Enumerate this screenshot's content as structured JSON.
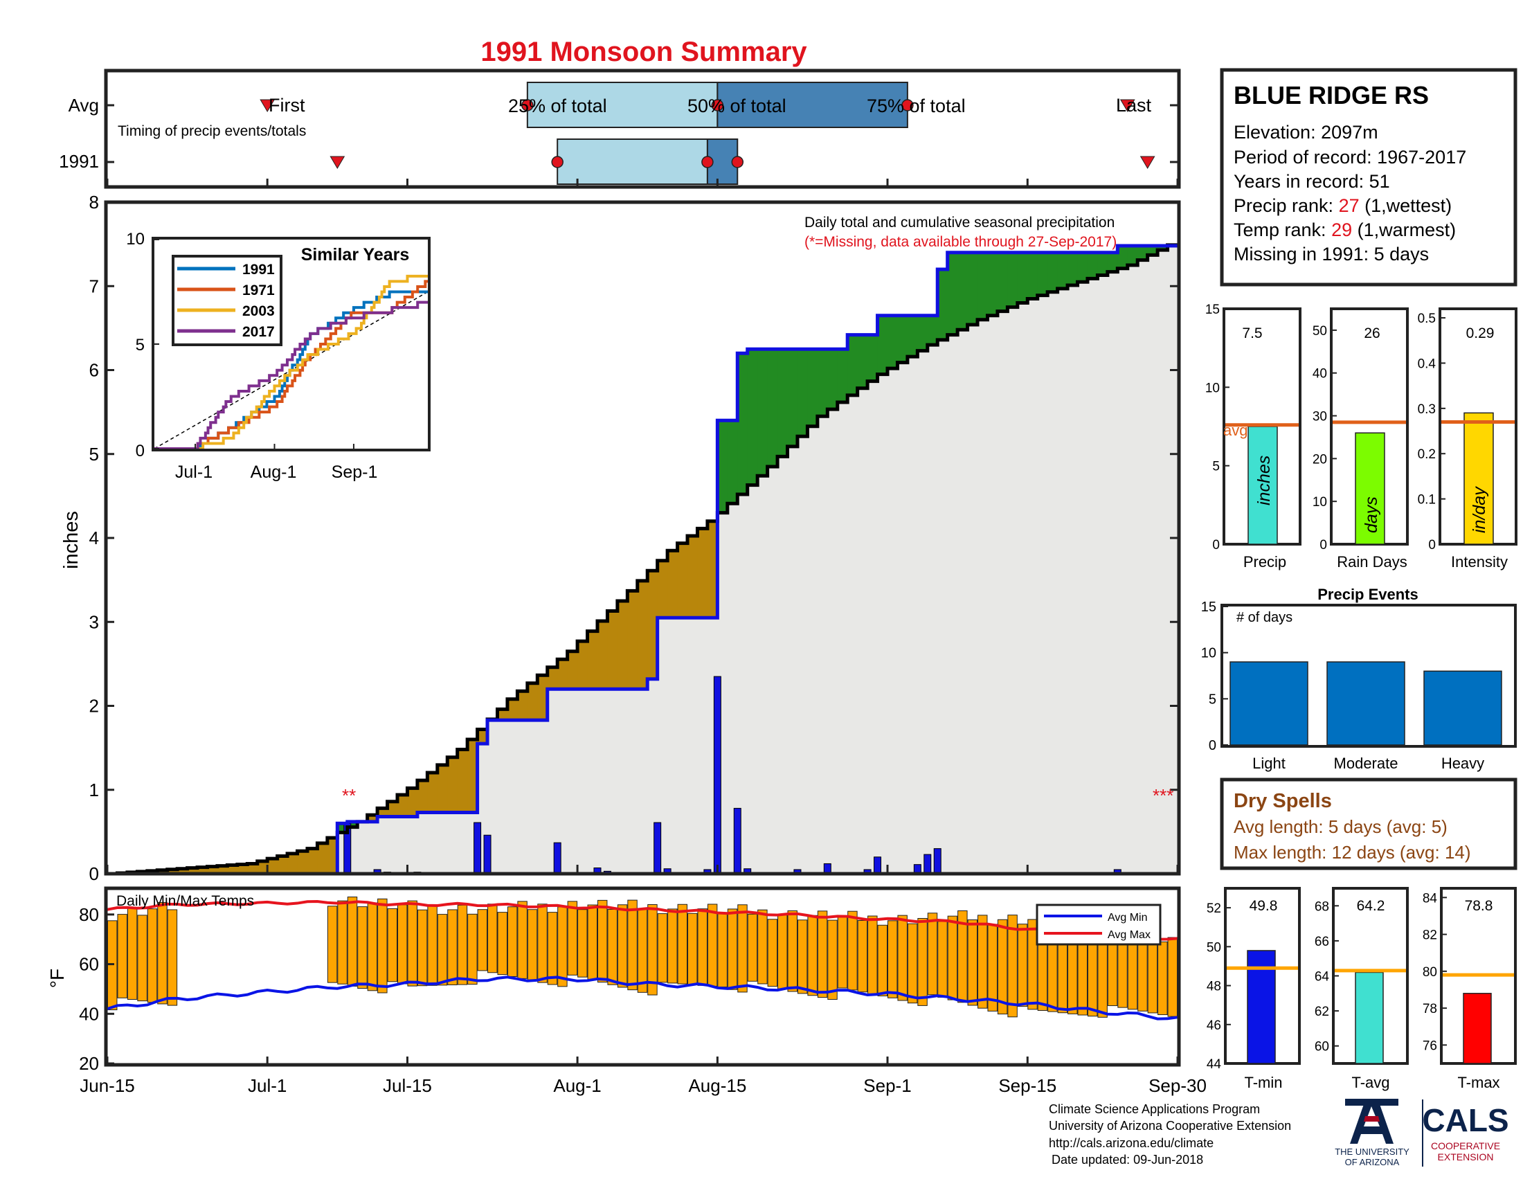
{
  "title": "1991 Monsoon Summary",
  "timing": {
    "row_labels": [
      "Avg",
      "1991"
    ],
    "note": "Timing of precip events/totals",
    "first_label": "First",
    "last_label": "Last",
    "pct25_label": "25% of total",
    "pct50_label": "50% of total",
    "pct75_label": "75% of total",
    "avg": {
      "first": "Jul-1",
      "p25": "Jul-27",
      "p50": "Aug-15",
      "p75": "Sep-3",
      "last": "Sep-25"
    },
    "y1991": {
      "first": "Jul-8",
      "p25": "Jul-30",
      "p50": "Aug-14",
      "p75": "Aug-17",
      "last": "Sep-27"
    }
  },
  "station": {
    "name": "BLUE RIDGE RS",
    "elevation_line": "Elevation: 2097m",
    "period_line": "Period of record: 1967-2017",
    "years_line": "Years in record: 51",
    "precip_rank_prefix": "Precip rank: ",
    "precip_rank_value": "27",
    "precip_rank_suffix": " (1,wettest)",
    "temp_rank_prefix": "Temp rank: ",
    "temp_rank_value": "29",
    "temp_rank_suffix": " (1,warmest)",
    "missing_line": "Missing in 1991: 5 days"
  },
  "main_chart": {
    "ylabel": "inches",
    "annotation1": "Daily total and cumulative seasonal precipitation",
    "annotation2": "(*=Missing, data available through 27-Sep-2017)",
    "missing_marker_1": "**",
    "missing_marker_2": "***",
    "x_ticks": [
      "Jun-15",
      "Jul-1",
      "Jul-15",
      "Aug-1",
      "Aug-15",
      "Sep-1",
      "Sep-15",
      "Sep-30"
    ],
    "y_ticks": [
      "0",
      "1",
      "2",
      "3",
      "4",
      "5",
      "6",
      "7",
      "8"
    ]
  },
  "inset": {
    "title": "Similar Years",
    "x_ticks": [
      "Jul-1",
      "Aug-1",
      "Sep-1"
    ],
    "y_ticks": [
      "0",
      "5",
      "10"
    ],
    "legend": [
      "1991",
      "1971",
      "2003",
      "2017"
    ]
  },
  "summary_bars": {
    "precip": {
      "value_label": "7.5",
      "unit": "inches",
      "label": "Precip",
      "y_ticks": [
        "0",
        "5",
        "10",
        "15"
      ]
    },
    "rain_days": {
      "value_label": "26",
      "unit": "days",
      "label": "Rain Days",
      "y_ticks": [
        "0",
        "10",
        "20",
        "30",
        "40",
        "50"
      ]
    },
    "intensity": {
      "value_label": "0.29",
      "unit": "in/day",
      "label": "Intensity",
      "y_ticks": [
        "0",
        "0.1",
        "0.2",
        "0.3",
        "0.4",
        "0.5"
      ]
    },
    "avg_label": "avg"
  },
  "events": {
    "title": "Precip Events",
    "ylabel": "# of days",
    "y_ticks": [
      "0",
      "5",
      "10",
      "15"
    ],
    "categories": [
      "Light",
      "Moderate",
      "Heavy"
    ]
  },
  "dry_spells": {
    "title": "Dry Spells",
    "avg_line": "Avg length: 5 days (avg: 5)",
    "max_line": "Max length: 12 days (avg: 14)"
  },
  "temps": {
    "title": "Daily Min/Max Temps",
    "ylabel": "°F",
    "y_ticks": [
      "20",
      "40",
      "60",
      "80"
    ],
    "legend_min": "Avg Min",
    "legend_max": "Avg Max"
  },
  "temp_bars": {
    "tmin": {
      "value_label": "49.8",
      "label": "T-min",
      "y_ticks": [
        "44",
        "46",
        "48",
        "50",
        "52"
      ]
    },
    "tavg": {
      "value_label": "64.2",
      "label": "T-avg",
      "y_ticks": [
        "60",
        "62",
        "64",
        "66",
        "68"
      ]
    },
    "tmax": {
      "value_label": "78.8",
      "label": "T-max",
      "y_ticks": [
        "76",
        "78",
        "80",
        "82",
        "84"
      ]
    }
  },
  "footer": {
    "line1": "Climate Science Applications Program",
    "line2": "University of Arizona Cooperative Extension",
    "line3": "http://cals.arizona.edu/climate",
    "line4": "Date updated: 09-Jun-2018",
    "ua_logo_line1": "THE UNIVERSITY",
    "ua_logo_line2": "OF ARIZONA",
    "cals_logo": "CALS",
    "cals_sub1": "COOPERATIVE",
    "cals_sub2": "EXTENSION"
  },
  "colors": {
    "title": "#e0141e",
    "cum_1991": "#1010e0",
    "cum_avg": "#000000",
    "wetter": "#228b22",
    "drier": "#b8860b",
    "area": "#e8e8e6",
    "precip_bar": "#ffd700",
    "temp_range": "#ffa500",
    "avg_min": "#0a14e6",
    "avg_max": "#e6141e",
    "light_blue": "#add8e6",
    "steel_blue": "#4682b4",
    "avg_line": "#e0601a",
    "temp_avg_line": "#ffa500",
    "event_bar": "#0070c0",
    "dry_spell_text": "#8b4513"
  },
  "chart_data": [
    {
      "type": "area",
      "title": "Daily total and cumulative seasonal precipitation",
      "ylabel": "inches",
      "ylim": [
        0,
        8
      ],
      "xlim": [
        "Jun-15",
        "Sep-30"
      ],
      "series": [
        {
          "name": "cumulative 1991",
          "x": [
            "Jun-15",
            "Jul-8",
            "Jul-9",
            "Jul-12",
            "Jul-16",
            "Jul-22",
            "Jul-23",
            "Jul-29",
            "Aug-8",
            "Aug-9",
            "Aug-14",
            "Aug-15",
            "Aug-17",
            "Aug-18",
            "Aug-28",
            "Aug-31",
            "Sep-6",
            "Sep-7",
            "Sep-24",
            "Sep-30"
          ],
          "values": [
            0.0,
            0.6,
            0.62,
            0.68,
            0.73,
            1.55,
            1.83,
            2.2,
            2.32,
            3.05,
            3.05,
            5.4,
            6.2,
            6.25,
            6.42,
            6.65,
            7.2,
            7.4,
            7.48,
            7.5
          ]
        },
        {
          "name": "cumulative average",
          "x": [
            "Jun-15",
            "Jun-22",
            "Jun-29",
            "Jul-5",
            "Jul-10",
            "Jul-15",
            "Jul-20",
            "Jul-25",
            "Jul-31",
            "Aug-5",
            "Aug-10",
            "Aug-14",
            "Aug-15",
            "Aug-20",
            "Aug-25",
            "Aug-31",
            "Sep-5",
            "Sep-10",
            "Sep-15",
            "Sep-20",
            "Sep-25",
            "Sep-30"
          ],
          "values": [
            0.0,
            0.06,
            0.12,
            0.3,
            0.62,
            1.02,
            1.48,
            2.08,
            2.65,
            3.25,
            3.85,
            4.2,
            4.3,
            4.85,
            5.45,
            5.95,
            6.3,
            6.6,
            6.85,
            7.05,
            7.25,
            7.55
          ]
        },
        {
          "name": "daily precipitation",
          "x": [
            "Jul-9",
            "Jul-12",
            "Jul-13",
            "Jul-16",
            "Jul-22",
            "Jul-23",
            "Jul-30",
            "Aug-3",
            "Aug-4",
            "Aug-9",
            "Aug-10",
            "Aug-14",
            "Aug-15",
            "Aug-17",
            "Aug-18",
            "Aug-23",
            "Aug-26",
            "Aug-30",
            "Aug-31",
            "Sep-4",
            "Sep-5",
            "Sep-6",
            "Sep-24"
          ],
          "values": [
            0.6,
            0.05,
            0.02,
            0.02,
            0.61,
            0.46,
            0.37,
            0.07,
            0.03,
            0.61,
            0.06,
            0.05,
            2.35,
            0.78,
            0.06,
            0.05,
            0.12,
            0.05,
            0.2,
            0.11,
            0.23,
            0.3,
            0.05
          ]
        }
      ]
    },
    {
      "type": "line",
      "title": "Similar Years",
      "x_ticks": [
        "Jul-1",
        "Aug-1",
        "Sep-1"
      ],
      "ylim": [
        0,
        10
      ],
      "x": [
        "Jun-15",
        "Jul-1",
        "Jul-15",
        "Aug-1",
        "Aug-15",
        "Sep-1",
        "Sep-15",
        "Sep-30"
      ],
      "series": [
        {
          "name": "1991",
          "values": [
            0,
            0.05,
            1.0,
            2.4,
            5.4,
            6.7,
            7.4,
            7.5
          ]
        },
        {
          "name": "1971",
          "values": [
            0,
            0.1,
            1.0,
            2.0,
            4.5,
            6.5,
            6.6,
            8.0
          ]
        },
        {
          "name": "2003",
          "values": [
            0,
            0.05,
            0.5,
            3.0,
            4.5,
            5.5,
            8.0,
            8.3
          ]
        },
        {
          "name": "2017",
          "values": [
            0,
            0.1,
            2.5,
            3.5,
            5.5,
            6.3,
            6.6,
            7.0
          ]
        }
      ]
    },
    {
      "type": "bar",
      "title": "Seasonal totals",
      "categories": [
        "Precip",
        "Rain Days",
        "Intensity"
      ],
      "values": [
        7.5,
        26,
        0.29
      ],
      "averages": [
        7.6,
        28.5,
        0.27
      ],
      "units": [
        "inches",
        "days",
        "in/day"
      ],
      "ylims": [
        [
          0,
          15
        ],
        [
          0,
          55
        ],
        [
          0,
          0.52
        ]
      ]
    },
    {
      "type": "bar",
      "title": "Precip Events",
      "ylabel": "# of days",
      "ylim": [
        0,
        15
      ],
      "categories": [
        "Light",
        "Moderate",
        "Heavy"
      ],
      "values": [
        9,
        9,
        8
      ]
    },
    {
      "type": "bar",
      "title": "Daily Min/Max Temps",
      "ylabel": "°F",
      "ylim": [
        20,
        90
      ],
      "x": [
        "Jun-15",
        "Jun-22",
        "Jul-8",
        "Jul-15",
        "Jul-22",
        "Aug-1",
        "Aug-8",
        "Aug-15",
        "Aug-22",
        "Sep-1",
        "Sep-8",
        "Sep-15",
        "Sep-22",
        "Sep-30"
      ],
      "series": [
        {
          "name": "daily max",
          "values": [
            80,
            84,
            86,
            83,
            82,
            84,
            83,
            82,
            80,
            78,
            79,
            78,
            72,
            70
          ]
        },
        {
          "name": "daily min",
          "values": [
            44,
            null,
            52,
            50,
            55,
            53,
            50,
            52,
            49,
            47,
            44,
            40,
            41,
            40
          ]
        },
        {
          "name": "Avg Min",
          "values": [
            42,
            46,
            51,
            52,
            54,
            54,
            52,
            51,
            50,
            48,
            46,
            44,
            41,
            38
          ]
        },
        {
          "name": "Avg Max",
          "values": [
            82,
            84,
            85,
            84,
            84,
            83,
            82,
            81,
            80,
            78,
            77,
            74,
            72,
            70
          ]
        }
      ]
    },
    {
      "type": "bar",
      "title": "Temperature means",
      "categories": [
        "T-min",
        "T-avg",
        "T-max"
      ],
      "values": [
        49.8,
        64.2,
        78.8
      ],
      "averages": [
        48.9,
        64.3,
        79.8
      ],
      "ylims": [
        [
          44,
          53
        ],
        [
          59,
          69
        ],
        [
          75,
          84.5
        ]
      ]
    }
  ]
}
